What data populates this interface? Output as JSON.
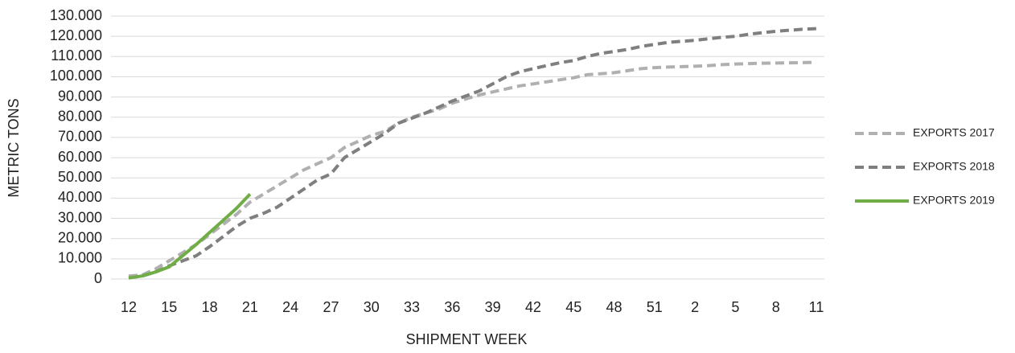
{
  "chart_data": {
    "type": "line",
    "x_label": "SHIPMENT WEEK",
    "y_label": "METRIC TONS",
    "categories": [
      "12",
      null,
      null,
      "15",
      null,
      null,
      "18",
      null,
      null,
      "21",
      null,
      null,
      "24",
      null,
      null,
      "27",
      null,
      null,
      "30",
      null,
      null,
      "33",
      null,
      null,
      "36",
      null,
      null,
      "39",
      null,
      null,
      "42",
      null,
      null,
      "45",
      null,
      null,
      "48",
      null,
      null,
      "51",
      null,
      null,
      "2",
      null,
      null,
      "5",
      null,
      null,
      "8",
      null,
      null,
      "11"
    ],
    "ylim": [
      0,
      130000
    ],
    "yticks": [
      0,
      {
        "value": 10000,
        "label": "10.000"
      },
      {
        "value": 20000,
        "label": "20.000"
      },
      {
        "value": 30000,
        "label": "30.000"
      },
      {
        "value": 40000,
        "label": "40.000"
      },
      {
        "value": 50000,
        "label": "50.000"
      },
      {
        "value": 60000,
        "label": "60.000"
      },
      {
        "value": 70000,
        "label": "70.000"
      },
      {
        "value": 80000,
        "label": "80.000"
      },
      {
        "value": 90000,
        "label": "90.000"
      },
      {
        "value": 100000,
        "label": "100.000"
      },
      {
        "value": 110000,
        "label": "110.000"
      },
      {
        "value": 120000,
        "label": "120.000"
      },
      {
        "value": 130000,
        "label": "130.000"
      }
    ],
    "grid": true,
    "legend": "right",
    "series": [
      {
        "name": "EXPORTS 2017",
        "color": "#b0b0b0",
        "dashed": true,
        "values": [
          1500,
          2000,
          5000,
          9000,
          13000,
          17000,
          22000,
          27000,
          32000,
          38000,
          42000,
          46000,
          50000,
          54000,
          57000,
          60000,
          65000,
          68000,
          71000,
          73000,
          77000,
          80000,
          82000,
          84000,
          87000,
          89000,
          91000,
          92500,
          94000,
          95500,
          96500,
          97500,
          98500,
          99500,
          101000,
          101500,
          102000,
          103000,
          104000,
          104500,
          104800,
          105000,
          105200,
          105500,
          106000,
          106300,
          106500,
          106700,
          106800,
          106900,
          107000,
          107200
        ]
      },
      {
        "name": "EXPORTS 2018",
        "color": "#7f7f7f",
        "dashed": true,
        "values": [
          500,
          1500,
          3500,
          6500,
          9000,
          11500,
          16000,
          21000,
          26000,
          30000,
          32500,
          35500,
          40000,
          44500,
          49000,
          52000,
          60000,
          64000,
          68000,
          72000,
          77000,
          79500,
          82000,
          85000,
          88000,
          90500,
          93000,
          96500,
          100000,
          102500,
          104000,
          105500,
          107000,
          108000,
          110000,
          111500,
          112500,
          113500,
          115000,
          116000,
          117000,
          117500,
          118000,
          118800,
          119500,
          120000,
          121000,
          121800,
          122500,
          123000,
          123500,
          123800
        ]
      },
      {
        "name": "EXPORTS 2019",
        "color": "#70ad47",
        "dashed": false,
        "values": [
          500,
          1500,
          3500,
          6000,
          11500,
          17000,
          23000,
          29000,
          35000,
          42000,
          null,
          null,
          null,
          null,
          null,
          null,
          null,
          null,
          null,
          null,
          null,
          null,
          null,
          null,
          null,
          null,
          null,
          null,
          null,
          null,
          null,
          null,
          null,
          null,
          null,
          null,
          null,
          null,
          null,
          null,
          null,
          null,
          null,
          null,
          null,
          null,
          null,
          null,
          null,
          null,
          null,
          null
        ]
      }
    ]
  }
}
